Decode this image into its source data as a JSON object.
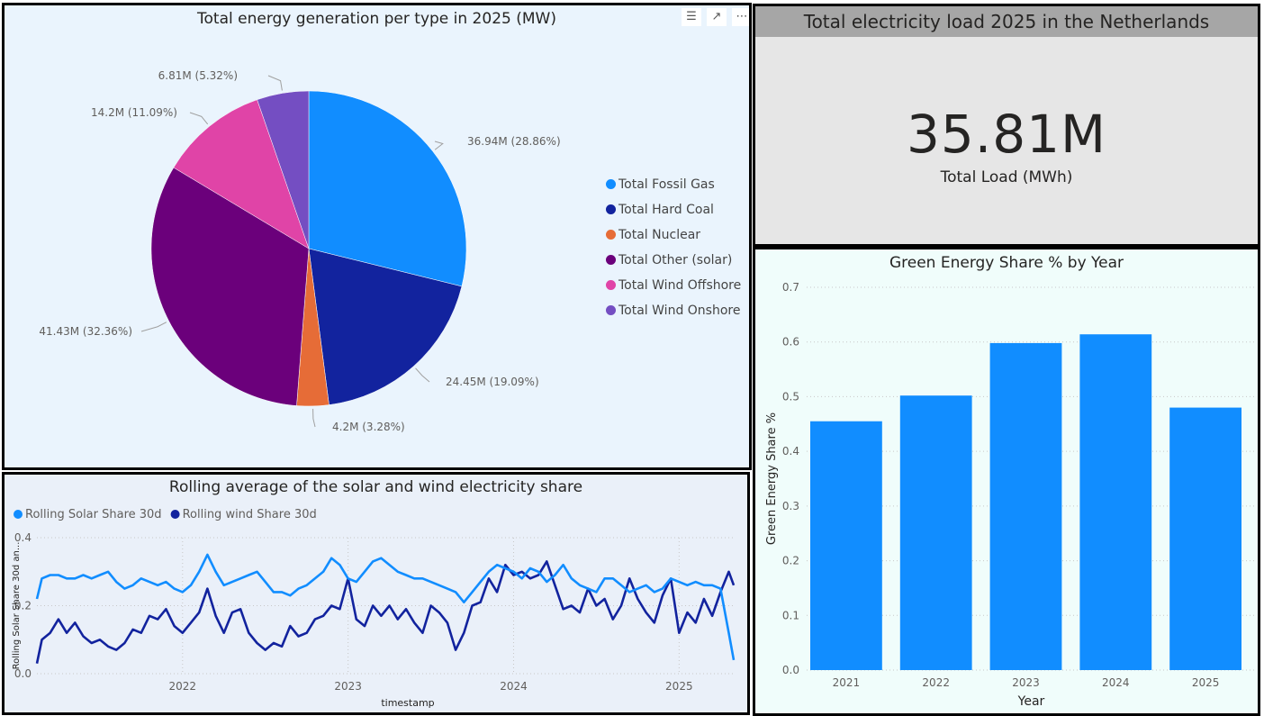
{
  "pie": {
    "title": "Total energy generation per type in 2025 (MW)",
    "chart_data": {
      "type": "pie",
      "title": "Total energy generation per type in 2025 (MW)",
      "slices": [
        {
          "name": "Total Fossil Gas",
          "value": 36.94,
          "label": "36.94M (28.86%)",
          "color": "#118DFF"
        },
        {
          "name": "Total Hard Coal",
          "value": 24.45,
          "label": "24.45M (19.09%)",
          "color": "#12239E"
        },
        {
          "name": "Total Nuclear",
          "value": 4.2,
          "label": "4.2M (3.28%)",
          "color": "#E66C37"
        },
        {
          "name": "Total Other (solar)",
          "value": 41.43,
          "label": "41.43M (32.36%)",
          "color": "#6B007B"
        },
        {
          "name": "Total Wind Offshore",
          "value": 14.2,
          "label": "14.2M (11.09%)",
          "color": "#E044A7"
        },
        {
          "name": "Total Wind Onshore",
          "value": 6.81,
          "label": "6.81M (5.32%)",
          "color": "#744EC2"
        }
      ],
      "legend": "right"
    }
  },
  "kpi": {
    "title": "Total electricity load 2025 in the Netherlands",
    "value": "35.81M",
    "label": "Total Load (MWh)"
  },
  "bar": {
    "title": "Green Energy Share % by Year",
    "chart_data": {
      "type": "bar",
      "title": "Green Energy Share % by Year",
      "categories": [
        "2021",
        "2022",
        "2023",
        "2024",
        "2025"
      ],
      "values": [
        0.455,
        0.502,
        0.598,
        0.614,
        0.48
      ],
      "xlabel": "Year",
      "ylabel": "Green Energy Share %",
      "ylim": [
        0,
        0.7
      ],
      "yticks": [
        "0.0",
        "0.1",
        "0.2",
        "0.3",
        "0.4",
        "0.5",
        "0.6",
        "0.7"
      ],
      "color": "#118DFF",
      "grid": true
    }
  },
  "line": {
    "title": "Rolling average of the solar and wind electricity share",
    "chart_data": {
      "type": "line",
      "title": "Rolling average of the solar and wind electricity share",
      "xlabel": "timestamp",
      "ylabel": "Rolling Solar Share 30d an...",
      "ylim": [
        0,
        0.4
      ],
      "yticks": [
        "0.0",
        "0.2",
        "0.4"
      ],
      "xticks": [
        "2022",
        "2023",
        "2024",
        "2025"
      ],
      "x_range": [
        2021.12,
        2025.33
      ],
      "legend": "top-left",
      "grid": true,
      "series": [
        {
          "name": "Rolling Solar Share 30d",
          "color": "#118DFF",
          "x": [
            2021.12,
            2021.15,
            2021.2,
            2021.25,
            2021.3,
            2021.35,
            2021.4,
            2021.45,
            2021.5,
            2021.55,
            2021.6,
            2021.65,
            2021.7,
            2021.75,
            2021.8,
            2021.85,
            2021.9,
            2021.95,
            2022.0,
            2022.05,
            2022.1,
            2022.15,
            2022.2,
            2022.25,
            2022.3,
            2022.35,
            2022.4,
            2022.45,
            2022.5,
            2022.55,
            2022.6,
            2022.65,
            2022.7,
            2022.75,
            2022.8,
            2022.85,
            2022.9,
            2022.95,
            2023.0,
            2023.05,
            2023.1,
            2023.15,
            2023.2,
            2023.25,
            2023.3,
            2023.35,
            2023.4,
            2023.45,
            2023.5,
            2023.55,
            2023.6,
            2023.65,
            2023.7,
            2023.75,
            2023.8,
            2023.85,
            2023.9,
            2023.95,
            2024.0,
            2024.05,
            2024.1,
            2024.15,
            2024.2,
            2024.25,
            2024.3,
            2024.35,
            2024.4,
            2024.45,
            2024.5,
            2024.55,
            2024.6,
            2024.65,
            2024.7,
            2024.75,
            2024.8,
            2024.85,
            2024.9,
            2024.95,
            2025.0,
            2025.05,
            2025.1,
            2025.15,
            2025.2,
            2025.25,
            2025.3,
            2025.33
          ],
          "values": [
            0.22,
            0.28,
            0.29,
            0.29,
            0.28,
            0.28,
            0.29,
            0.28,
            0.29,
            0.3,
            0.27,
            0.25,
            0.26,
            0.28,
            0.27,
            0.26,
            0.27,
            0.25,
            0.24,
            0.26,
            0.3,
            0.35,
            0.3,
            0.26,
            0.27,
            0.28,
            0.29,
            0.3,
            0.27,
            0.24,
            0.24,
            0.23,
            0.25,
            0.26,
            0.28,
            0.3,
            0.34,
            0.32,
            0.28,
            0.27,
            0.3,
            0.33,
            0.34,
            0.32,
            0.3,
            0.29,
            0.28,
            0.28,
            0.27,
            0.26,
            0.25,
            0.24,
            0.21,
            0.24,
            0.27,
            0.3,
            0.32,
            0.31,
            0.3,
            0.28,
            0.31,
            0.3,
            0.27,
            0.29,
            0.32,
            0.28,
            0.26,
            0.25,
            0.24,
            0.28,
            0.28,
            0.26,
            0.24,
            0.25,
            0.26,
            0.24,
            0.25,
            0.28,
            0.27,
            0.26,
            0.27,
            0.26,
            0.26,
            0.25,
            0.12,
            0.04
          ]
        },
        {
          "name": "Rolling wind Share 30d",
          "color": "#12239E",
          "x": [
            2021.12,
            2021.15,
            2021.2,
            2021.25,
            2021.3,
            2021.35,
            2021.4,
            2021.45,
            2021.5,
            2021.55,
            2021.6,
            2021.65,
            2021.7,
            2021.75,
            2021.8,
            2021.85,
            2021.9,
            2021.95,
            2022.0,
            2022.05,
            2022.1,
            2022.15,
            2022.2,
            2022.25,
            2022.3,
            2022.35,
            2022.4,
            2022.45,
            2022.5,
            2022.55,
            2022.6,
            2022.65,
            2022.7,
            2022.75,
            2022.8,
            2022.85,
            2022.9,
            2022.95,
            2023.0,
            2023.05,
            2023.1,
            2023.15,
            2023.2,
            2023.25,
            2023.3,
            2023.35,
            2023.4,
            2023.45,
            2023.5,
            2023.55,
            2023.6,
            2023.65,
            2023.7,
            2023.75,
            2023.8,
            2023.85,
            2023.9,
            2023.95,
            2024.0,
            2024.05,
            2024.1,
            2024.15,
            2024.2,
            2024.25,
            2024.3,
            2024.35,
            2024.4,
            2024.45,
            2024.5,
            2024.55,
            2024.6,
            2024.65,
            2024.7,
            2024.75,
            2024.8,
            2024.85,
            2024.9,
            2024.95,
            2025.0,
            2025.05,
            2025.1,
            2025.15,
            2025.2,
            2025.25,
            2025.3,
            2025.33
          ],
          "values": [
            0.03,
            0.1,
            0.12,
            0.16,
            0.12,
            0.15,
            0.11,
            0.09,
            0.1,
            0.08,
            0.07,
            0.09,
            0.13,
            0.12,
            0.17,
            0.16,
            0.19,
            0.14,
            0.12,
            0.15,
            0.18,
            0.25,
            0.17,
            0.12,
            0.18,
            0.19,
            0.12,
            0.09,
            0.07,
            0.09,
            0.08,
            0.14,
            0.11,
            0.12,
            0.16,
            0.17,
            0.2,
            0.19,
            0.28,
            0.16,
            0.14,
            0.2,
            0.17,
            0.2,
            0.16,
            0.19,
            0.15,
            0.12,
            0.2,
            0.18,
            0.15,
            0.07,
            0.12,
            0.2,
            0.21,
            0.28,
            0.24,
            0.32,
            0.29,
            0.3,
            0.28,
            0.29,
            0.33,
            0.26,
            0.19,
            0.2,
            0.18,
            0.25,
            0.2,
            0.22,
            0.16,
            0.2,
            0.28,
            0.22,
            0.18,
            0.15,
            0.23,
            0.28,
            0.12,
            0.18,
            0.15,
            0.22,
            0.17,
            0.24,
            0.3,
            0.26
          ]
        }
      ]
    }
  }
}
